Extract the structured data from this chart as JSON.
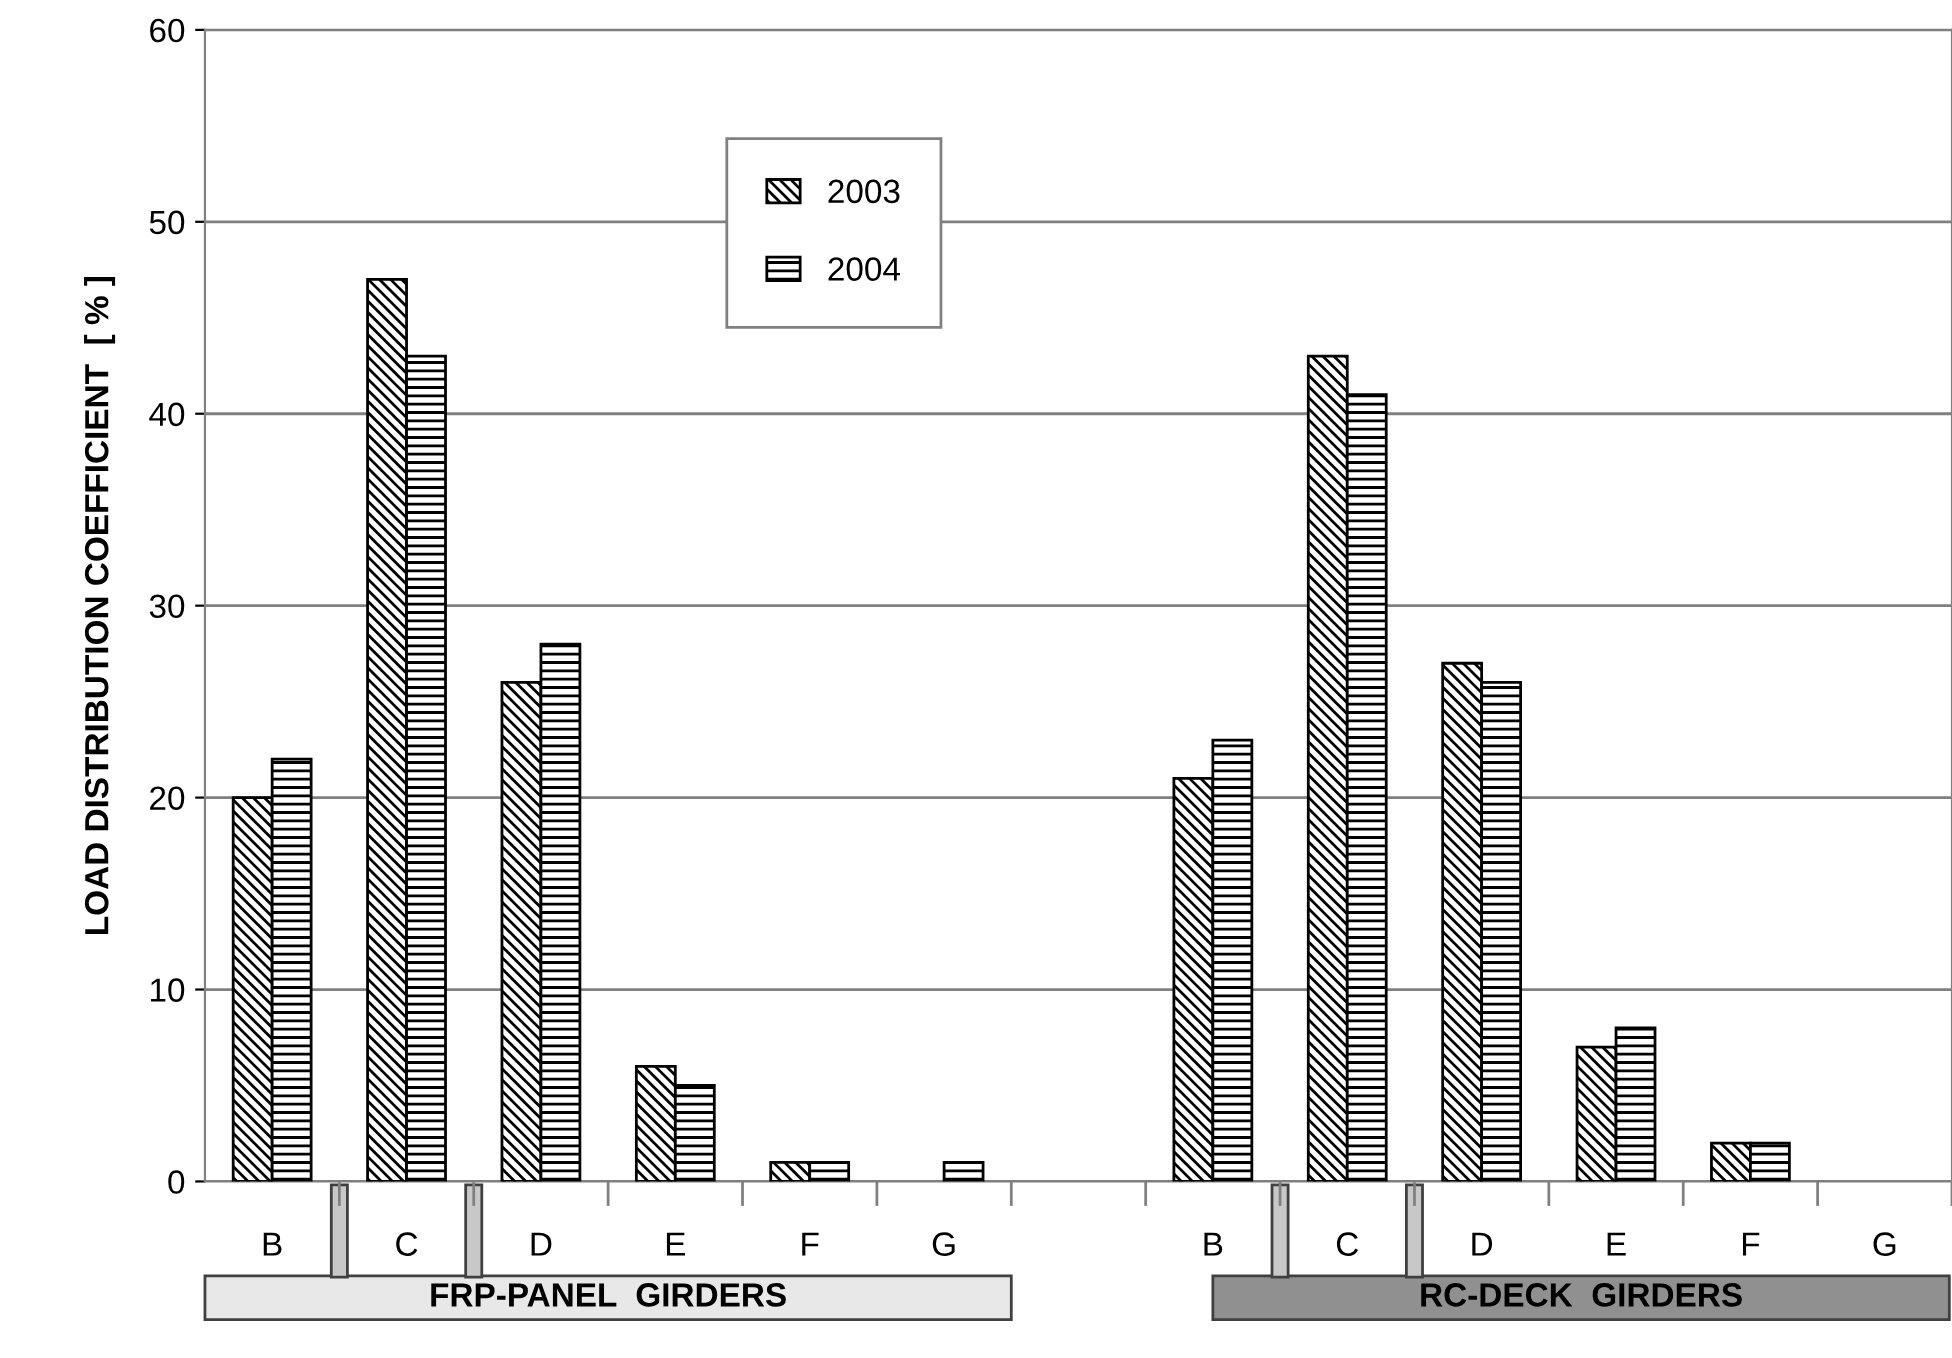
{
  "chart_data": {
    "type": "bar",
    "ylabel": "LOAD DISTRIBUTION COEFFICIENT  [ % ]",
    "categories": [
      "B",
      "C",
      "D",
      "E",
      "F",
      "G",
      null,
      "B",
      "C",
      "D",
      "E",
      "F",
      "G"
    ],
    "series": [
      {
        "name": "2003",
        "color": "#000000",
        "values": [
          20,
          47,
          26,
          6,
          1,
          null,
          null,
          21,
          43,
          27,
          7,
          2,
          null
        ]
      },
      {
        "name": "2004",
        "color": "#000000",
        "values": [
          22,
          43,
          28,
          5,
          1,
          1,
          null,
          23,
          41,
          26,
          8,
          2,
          null
        ]
      }
    ],
    "ylim": [
      0,
      60
    ],
    "yticks": [
      0,
      10,
      20,
      30,
      40,
      50,
      60
    ],
    "grid": "y",
    "legend": "top",
    "annotations": [
      "FRP-PANEL  GIRDERS",
      "RC-DECK  GIRDERS"
    ]
  }
}
